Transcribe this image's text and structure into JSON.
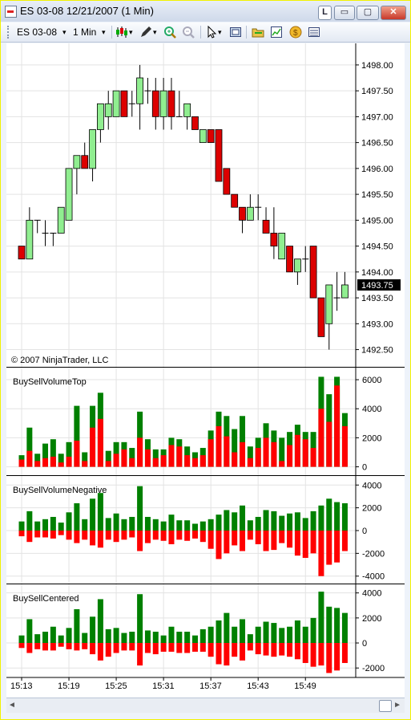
{
  "window": {
    "title": "ES 03-08  12/21/2007 (1 Min)",
    "buttons": {
      "link": "L",
      "minimize": "▭",
      "maximize": "▢",
      "close": "✕"
    }
  },
  "toolbar": {
    "instrument": "ES 03-08",
    "interval": "1 Min",
    "dropdown_arrow": "▾",
    "icons": [
      "candlestick-style-icon",
      "pencil-draw-icon",
      "zoom-in-icon",
      "zoom-out-icon",
      "cursor-icon",
      "properties-icon",
      "folder-icon",
      "chart-icon",
      "coin-icon",
      "data-box-icon"
    ]
  },
  "scroll": {
    "left_arrow": "◄",
    "right_arrow": "►"
  },
  "colors": {
    "up": "#90ee90",
    "down": "#dd0000",
    "buy": "#008000",
    "sell": "#ff0000",
    "grid": "#e3e3e3"
  },
  "chart_data": [
    {
      "type": "candlestick",
      "copyright": "© 2007 NinjaTrader, LLC",
      "ylim": [
        1492.4,
        1498.2
      ],
      "yticks": [
        "1492.50",
        "1493.00",
        "1493.50",
        "1494.00",
        "1494.50",
        "1495.00",
        "1495.50",
        "1496.00",
        "1496.50",
        "1497.00",
        "1497.50",
        "1498.00"
      ],
      "last_price": "1493.75",
      "x_labels": [
        "15:13",
        "15:19",
        "15:25",
        "15:31",
        "15:37",
        "15:43",
        "15:49"
      ],
      "candles": [
        {
          "o": 1494.5,
          "h": 1494.5,
          "l": 1494.25,
          "c": 1494.25
        },
        {
          "o": 1494.25,
          "h": 1495.25,
          "l": 1494.25,
          "c": 1495.0
        },
        {
          "o": 1495.0,
          "h": 1495.0,
          "l": 1494.75,
          "c": 1495.0
        },
        {
          "o": 1494.75,
          "h": 1495.0,
          "l": 1494.5,
          "c": 1494.75
        },
        {
          "o": 1494.75,
          "h": 1494.75,
          "l": 1494.5,
          "c": 1494.75
        },
        {
          "o": 1494.75,
          "h": 1495.25,
          "l": 1494.75,
          "c": 1495.25
        },
        {
          "o": 1495.0,
          "h": 1496.0,
          "l": 1495.0,
          "c": 1496.0
        },
        {
          "o": 1496.0,
          "h": 1496.25,
          "l": 1495.5,
          "c": 1496.25
        },
        {
          "o": 1496.25,
          "h": 1496.5,
          "l": 1496.0,
          "c": 1496.0
        },
        {
          "o": 1496.0,
          "h": 1496.75,
          "l": 1495.75,
          "c": 1496.75
        },
        {
          "o": 1496.75,
          "h": 1497.25,
          "l": 1496.5,
          "c": 1497.25
        },
        {
          "o": 1497.0,
          "h": 1497.5,
          "l": 1496.75,
          "c": 1497.25
        },
        {
          "o": 1497.0,
          "h": 1497.5,
          "l": 1497.0,
          "c": 1497.5
        },
        {
          "o": 1497.5,
          "h": 1497.5,
          "l": 1497.0,
          "c": 1497.0
        },
        {
          "o": 1497.25,
          "h": 1497.5,
          "l": 1497.0,
          "c": 1497.25
        },
        {
          "o": 1497.25,
          "h": 1498.0,
          "l": 1496.75,
          "c": 1497.75
        },
        {
          "o": 1497.5,
          "h": 1497.75,
          "l": 1497.25,
          "c": 1497.5
        },
        {
          "o": 1497.5,
          "h": 1497.75,
          "l": 1496.75,
          "c": 1497.0
        },
        {
          "o": 1497.0,
          "h": 1497.75,
          "l": 1496.75,
          "c": 1497.5
        },
        {
          "o": 1497.5,
          "h": 1497.75,
          "l": 1496.75,
          "c": 1497.0
        },
        {
          "o": 1497.0,
          "h": 1497.5,
          "l": 1497.0,
          "c": 1497.0
        },
        {
          "o": 1497.0,
          "h": 1497.25,
          "l": 1496.75,
          "c": 1497.25
        },
        {
          "o": 1497.0,
          "h": 1497.0,
          "l": 1496.75,
          "c": 1496.75
        },
        {
          "o": 1496.5,
          "h": 1496.75,
          "l": 1496.5,
          "c": 1496.75
        },
        {
          "o": 1496.75,
          "h": 1496.75,
          "l": 1496.5,
          "c": 1496.5
        },
        {
          "o": 1496.75,
          "h": 1496.75,
          "l": 1495.75,
          "c": 1495.75
        },
        {
          "o": 1496.0,
          "h": 1496.0,
          "l": 1495.5,
          "c": 1495.5
        },
        {
          "o": 1495.5,
          "h": 1495.5,
          "l": 1495.25,
          "c": 1495.25
        },
        {
          "o": 1495.25,
          "h": 1495.25,
          "l": 1494.75,
          "c": 1495.0
        },
        {
          "o": 1495.0,
          "h": 1495.5,
          "l": 1495.0,
          "c": 1495.25
        },
        {
          "o": 1495.25,
          "h": 1495.5,
          "l": 1495.0,
          "c": 1495.25
        },
        {
          "o": 1495.0,
          "h": 1495.25,
          "l": 1494.75,
          "c": 1494.75
        },
        {
          "o": 1494.75,
          "h": 1495.25,
          "l": 1494.25,
          "c": 1494.5
        },
        {
          "o": 1494.25,
          "h": 1494.75,
          "l": 1494.25,
          "c": 1494.75
        },
        {
          "o": 1494.5,
          "h": 1494.5,
          "l": 1494.0,
          "c": 1494.0
        },
        {
          "o": 1494.0,
          "h": 1494.25,
          "l": 1493.75,
          "c": 1494.25
        },
        {
          "o": 1494.25,
          "h": 1494.5,
          "l": 1494.0,
          "c": 1494.25
        },
        {
          "o": 1494.5,
          "h": 1494.5,
          "l": 1493.5,
          "c": 1493.5
        },
        {
          "o": 1493.5,
          "h": 1493.5,
          "l": 1492.75,
          "c": 1492.75
        },
        {
          "o": 1493.0,
          "h": 1493.75,
          "l": 1492.5,
          "c": 1493.75
        },
        {
          "o": 1493.5,
          "h": 1494.0,
          "l": 1493.25,
          "c": 1493.5
        },
        {
          "o": 1493.5,
          "h": 1494.0,
          "l": 1493.5,
          "c": 1493.75
        }
      ]
    },
    {
      "type": "bar",
      "name": "BuySellVolumeTop",
      "ylim": [
        -300,
        6500
      ],
      "yticks": [
        "0",
        "2000",
        "4000",
        "6000"
      ],
      "buy": [
        300,
        1600,
        500,
        1000,
        1200,
        600,
        1000,
        2400,
        600,
        1500,
        1800,
        700,
        800,
        500,
        700,
        1800,
        700,
        600,
        400,
        500,
        500,
        600,
        400,
        500,
        600,
        1000,
        1400,
        1600,
        1800,
        800,
        700,
        1000,
        800,
        1600,
        900,
        700,
        500,
        1100,
        2200,
        1900,
        600,
        900
      ],
      "sell": [
        500,
        1100,
        400,
        600,
        700,
        300,
        700,
        1800,
        400,
        2700,
        3300,
        400,
        900,
        1200,
        600,
        2000,
        1200,
        600,
        800,
        1500,
        1400,
        800,
        600,
        800,
        1900,
        2800,
        2100,
        1000,
        1700,
        600,
        1300,
        2000,
        1700,
        400,
        1500,
        2200,
        1900,
        1300,
        4000,
        3100,
        5600,
        2800
      ]
    },
    {
      "type": "bar",
      "name": "BuySellVolumeNegative",
      "ylim": [
        -4300,
        4300
      ],
      "yticks": [
        "4000",
        "2000",
        "0",
        "-2000",
        "-4000"
      ],
      "buy": [
        800,
        1700,
        800,
        1000,
        1200,
        700,
        1600,
        2400,
        1000,
        2800,
        3300,
        1100,
        1500,
        1000,
        1200,
        3900,
        1200,
        1000,
        800,
        1400,
        900,
        900,
        600,
        800,
        1000,
        1400,
        1800,
        1600,
        2200,
        900,
        1200,
        1800,
        1700,
        1300,
        1500,
        1600,
        1100,
        1700,
        2200,
        2800,
        2500,
        2400
      ],
      "sell": [
        -500,
        -1000,
        -600,
        -600,
        -700,
        -400,
        -800,
        -1100,
        -800,
        -1300,
        -1500,
        -800,
        -1000,
        -800,
        -600,
        -1800,
        -1100,
        -800,
        -900,
        -1200,
        -800,
        -900,
        -700,
        -1000,
        -1600,
        -2500,
        -2000,
        -1300,
        -1800,
        -800,
        -1200,
        -1800,
        -1700,
        -1100,
        -1500,
        -2200,
        -2400,
        -2000,
        -4000,
        -3000,
        -2800,
        -1800
      ]
    },
    {
      "type": "bar",
      "name": "BuySellCentered",
      "ylim": [
        -2500,
        4300
      ],
      "yticks": [
        "4000",
        "2000",
        "0",
        "-2000"
      ],
      "buy": [
        600,
        1900,
        700,
        900,
        1300,
        600,
        1200,
        2700,
        800,
        2100,
        3500,
        1100,
        1200,
        800,
        900,
        3900,
        1000,
        900,
        600,
        1300,
        900,
        900,
        600,
        1100,
        1300,
        1800,
        2400,
        1300,
        1900,
        700,
        1300,
        1700,
        1600,
        1200,
        1300,
        1800,
        1300,
        2000,
        4100,
        2900,
        2800,
        2400
      ],
      "sell": [
        -400,
        -800,
        -500,
        -600,
        -600,
        -300,
        -500,
        -600,
        -500,
        -900,
        -1400,
        -1100,
        -800,
        -600,
        -600,
        -1800,
        -800,
        -900,
        -700,
        -700,
        -800,
        -800,
        -700,
        -700,
        -1100,
        -1700,
        -1800,
        -1100,
        -1400,
        -600,
        -900,
        -1000,
        -1100,
        -1000,
        -1100,
        -1300,
        -1600,
        -1900,
        -1800,
        -2400,
        -2200,
        -1600
      ]
    }
  ]
}
